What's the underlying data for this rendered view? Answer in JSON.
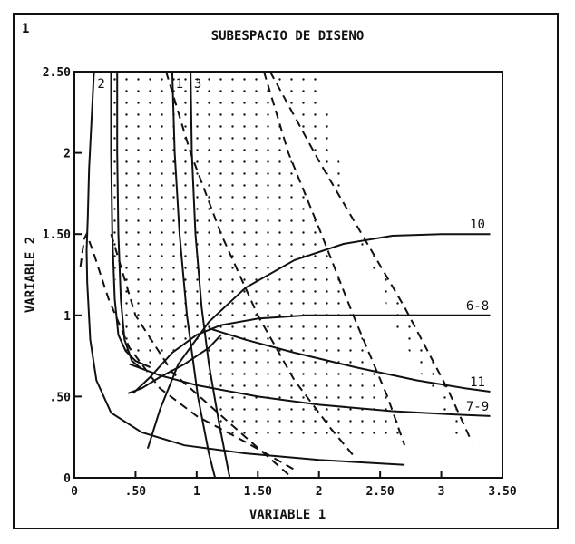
{
  "chart_data": {
    "type": "line",
    "title": "SUBESPACIO DE DISENO",
    "corner_mark": "1",
    "xlabel": "VARIABLE 1",
    "ylabel": "VARIABLE 2",
    "xlim": [
      0,
      3.5
    ],
    "ylim": [
      0,
      2.5
    ],
    "x_ticks": [
      {
        "value": 0,
        "label": "0"
      },
      {
        "value": 0.5,
        "label": ".50"
      },
      {
        "value": 1,
        "label": "1"
      },
      {
        "value": 1.5,
        "label": "1.50"
      },
      {
        "value": 2,
        "label": "2"
      },
      {
        "value": 2.5,
        "label": "2.50"
      },
      {
        "value": 3,
        "label": "3"
      },
      {
        "value": 3.5,
        "label": "3.50"
      }
    ],
    "y_ticks": [
      {
        "value": 0,
        "label": "0"
      },
      {
        "value": 0.5,
        "label": ".50"
      },
      {
        "value": 1,
        "label": "1"
      },
      {
        "value": 1.5,
        "label": "1.50"
      },
      {
        "value": 2,
        "label": "2"
      },
      {
        "value": 2.5,
        "label": "2.50"
      }
    ],
    "feasible_region": {
      "style": "dotted",
      "boundary": [
        [
          0.26,
          2.5
        ],
        [
          1.54,
          2.5
        ],
        [
          1.75,
          2.0
        ],
        [
          2.02,
          1.5
        ],
        [
          2.28,
          1.0
        ],
        [
          2.56,
          0.5
        ],
        [
          2.71,
          0.22
        ],
        [
          3.25,
          0.22
        ],
        [
          3.05,
          0.55
        ],
        [
          2.7,
          1.05
        ],
        [
          2.35,
          1.5
        ],
        [
          2.0,
          1.95
        ],
        [
          1.6,
          2.5
        ],
        [
          2.0,
          2.5
        ],
        [
          2.3,
          1.5
        ],
        [
          2.65,
          0.9
        ],
        [
          3.1,
          0.27
        ],
        [
          3.25,
          0.22
        ],
        [
          1.13,
          0.22
        ],
        [
          1.1,
          0.6
        ],
        [
          1.05,
          0.85
        ],
        [
          0.85,
          0.8
        ],
        [
          0.5,
          0.65
        ],
        [
          0.36,
          0.9
        ],
        [
          0.32,
          1.4
        ],
        [
          0.3,
          2.0
        ],
        [
          0.26,
          2.5
        ]
      ]
    },
    "series": [
      {
        "name": "2",
        "style": "solid",
        "points": [
          [
            0.16,
            2.5
          ],
          [
            0.14,
            2.2
          ],
          [
            0.12,
            1.9
          ],
          [
            0.11,
            1.6
          ],
          [
            0.1,
            1.4
          ],
          [
            0.105,
            1.2
          ],
          [
            0.13,
            0.85
          ],
          [
            0.18,
            0.6
          ],
          [
            0.3,
            0.4
          ],
          [
            0.55,
            0.28
          ],
          [
            0.9,
            0.2
          ],
          [
            1.4,
            0.15
          ],
          [
            2.0,
            0.11
          ],
          [
            2.7,
            0.08
          ]
        ]
      },
      {
        "name": "",
        "style": "solid",
        "points": [
          [
            0.3,
            2.5
          ],
          [
            0.3,
            2.0
          ],
          [
            0.31,
            1.5
          ],
          [
            0.33,
            1.1
          ],
          [
            0.36,
            0.88
          ],
          [
            0.42,
            0.78
          ],
          [
            0.5,
            0.72
          ],
          [
            0.62,
            0.68
          ]
        ]
      },
      {
        "name": "",
        "style": "solid",
        "points": [
          [
            0.35,
            2.5
          ],
          [
            0.35,
            2.0
          ],
          [
            0.36,
            1.5
          ],
          [
            0.38,
            1.1
          ],
          [
            0.41,
            0.85
          ],
          [
            0.47,
            0.72
          ],
          [
            0.55,
            0.67
          ]
        ]
      },
      {
        "name": "1",
        "style": "solid",
        "points": [
          [
            0.8,
            2.5
          ],
          [
            0.82,
            2.0
          ],
          [
            0.86,
            1.5
          ],
          [
            0.92,
            1.0
          ],
          [
            1.01,
            0.5
          ],
          [
            1.1,
            0.15
          ],
          [
            1.15,
            0.0
          ]
        ]
      },
      {
        "name": "3",
        "style": "solid",
        "points": [
          [
            0.95,
            2.5
          ],
          [
            0.96,
            2.0
          ],
          [
            0.99,
            1.5
          ],
          [
            1.04,
            1.05
          ],
          [
            1.1,
            0.7
          ],
          [
            1.18,
            0.35
          ],
          [
            1.27,
            0.0
          ]
        ]
      },
      {
        "name": "11",
        "style": "solid",
        "points": [
          [
            1.1,
            0.92
          ],
          [
            1.4,
            0.85
          ],
          [
            1.8,
            0.77
          ],
          [
            2.3,
            0.68
          ],
          [
            2.8,
            0.6
          ],
          [
            3.2,
            0.55
          ],
          [
            3.4,
            0.53
          ]
        ]
      },
      {
        "name": "7-9",
        "style": "solid",
        "points": [
          [
            0.45,
            0.7
          ],
          [
            0.7,
            0.63
          ],
          [
            1.0,
            0.57
          ],
          [
            1.5,
            0.5
          ],
          [
            2.0,
            0.45
          ],
          [
            2.6,
            0.41
          ],
          [
            3.1,
            0.39
          ],
          [
            3.4,
            0.38
          ]
        ]
      },
      {
        "name": "10",
        "style": "solid",
        "points": [
          [
            0.6,
            0.18
          ],
          [
            0.7,
            0.42
          ],
          [
            0.85,
            0.7
          ],
          [
            1.1,
            0.96
          ],
          [
            1.4,
            1.17
          ],
          [
            1.8,
            1.34
          ],
          [
            2.2,
            1.44
          ],
          [
            2.6,
            1.49
          ],
          [
            3.0,
            1.5
          ],
          [
            3.4,
            1.5
          ]
        ]
      },
      {
        "name": "6-8",
        "style": "solid",
        "points": [
          [
            0.48,
            0.52
          ],
          [
            0.62,
            0.62
          ],
          [
            0.8,
            0.77
          ],
          [
            1.0,
            0.88
          ],
          [
            1.2,
            0.94
          ],
          [
            1.5,
            0.98
          ],
          [
            1.9,
            1.0
          ],
          [
            2.5,
            1.0
          ],
          [
            3.0,
            1.0
          ],
          [
            3.4,
            1.0
          ]
        ]
      },
      {
        "name": "",
        "style": "solid",
        "points": [
          [
            0.44,
            0.52
          ],
          [
            0.55,
            0.55
          ],
          [
            0.7,
            0.62
          ],
          [
            0.9,
            0.7
          ],
          [
            1.1,
            0.8
          ],
          [
            1.2,
            0.88
          ]
        ]
      },
      {
        "name": "",
        "style": "dashed",
        "points": [
          [
            0.05,
            1.3
          ],
          [
            0.08,
            1.47
          ],
          [
            0.1,
            1.5
          ],
          [
            0.15,
            1.4
          ],
          [
            0.28,
            1.1
          ],
          [
            0.45,
            0.8
          ],
          [
            0.7,
            0.55
          ],
          [
            1.0,
            0.38
          ],
          [
            1.4,
            0.22
          ],
          [
            1.8,
            0.05
          ]
        ]
      },
      {
        "name": "",
        "style": "dashed",
        "points": [
          [
            0.3,
            1.5
          ],
          [
            0.5,
            1.0
          ],
          [
            0.8,
            0.65
          ],
          [
            1.1,
            0.45
          ],
          [
            1.4,
            0.25
          ],
          [
            1.75,
            0.02
          ]
        ]
      },
      {
        "name": "",
        "style": "dashed",
        "points": [
          [
            0.75,
            2.5
          ],
          [
            0.95,
            2.0
          ],
          [
            1.2,
            1.5
          ],
          [
            1.5,
            1.0
          ],
          [
            1.8,
            0.6
          ],
          [
            2.1,
            0.3
          ],
          [
            2.3,
            0.12
          ]
        ]
      },
      {
        "name": "",
        "style": "dashed",
        "points": [
          [
            1.55,
            2.5
          ],
          [
            1.75,
            2.0
          ],
          [
            2.02,
            1.5
          ],
          [
            2.28,
            1.0
          ],
          [
            2.56,
            0.5
          ],
          [
            2.7,
            0.2
          ]
        ]
      },
      {
        "name": "",
        "style": "dashed",
        "points": [
          [
            1.6,
            2.5
          ],
          [
            2.0,
            1.95
          ],
          [
            2.35,
            1.5
          ],
          [
            2.7,
            1.05
          ],
          [
            3.05,
            0.55
          ],
          [
            3.25,
            0.22
          ]
        ]
      }
    ],
    "grid": false,
    "legend": "none"
  }
}
